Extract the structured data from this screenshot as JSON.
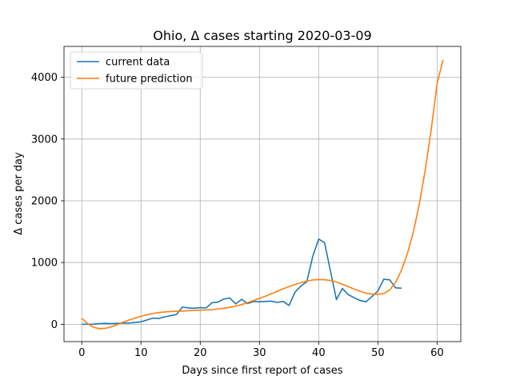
{
  "chart_data": {
    "type": "line",
    "title": "Ohio, Δ cases starting 2020-03-09",
    "xlabel": "Days since first report of cases",
    "ylabel": "Δ cases per day",
    "xlim": [
      -3,
      64
    ],
    "ylim": [
      -280,
      4500
    ],
    "xticks": [
      0,
      10,
      20,
      30,
      40,
      50,
      60
    ],
    "yticks": [
      0,
      1000,
      2000,
      3000,
      4000
    ],
    "grid": true,
    "legend_position": "top-left",
    "series": [
      {
        "name": "current data",
        "color": "#1f77b4",
        "x": [
          0,
          1,
          2,
          3,
          4,
          5,
          6,
          7,
          8,
          9,
          10,
          11,
          12,
          13,
          14,
          15,
          16,
          17,
          18,
          19,
          20,
          21,
          22,
          23,
          24,
          25,
          26,
          27,
          28,
          29,
          30,
          31,
          32,
          33,
          34,
          35,
          36,
          37,
          38,
          39,
          40,
          41,
          42,
          43,
          44,
          45,
          46,
          47,
          48,
          49,
          50,
          51,
          52,
          53,
          54
        ],
        "y": [
          0,
          0,
          3,
          10,
          15,
          10,
          15,
          20,
          20,
          30,
          40,
          70,
          100,
          95,
          120,
          140,
          160,
          280,
          265,
          260,
          270,
          265,
          350,
          360,
          410,
          425,
          330,
          405,
          335,
          370,
          365,
          370,
          375,
          355,
          370,
          305,
          520,
          620,
          690,
          1100,
          1380,
          1320,
          860,
          400,
          580,
          480,
          430,
          385,
          365,
          450,
          540,
          730,
          720,
          590,
          585
        ]
      },
      {
        "name": "future prediction",
        "color": "#ff7f0e",
        "x": [
          0,
          1,
          2,
          3,
          4,
          5,
          6,
          7,
          8,
          9,
          10,
          11,
          12,
          13,
          14,
          15,
          16,
          17,
          18,
          19,
          20,
          21,
          22,
          23,
          24,
          25,
          26,
          27,
          28,
          29,
          30,
          31,
          32,
          33,
          34,
          35,
          36,
          37,
          38,
          39,
          40,
          41,
          42,
          43,
          44,
          45,
          46,
          47,
          48,
          49,
          50,
          51,
          52,
          53,
          54,
          55,
          56,
          57,
          58,
          59,
          60,
          61
        ],
        "y": [
          100,
          10,
          -50,
          -70,
          -65,
          -40,
          -5,
          35,
          70,
          100,
          130,
          155,
          175,
          190,
          200,
          207,
          212,
          215,
          220,
          225,
          228,
          232,
          238,
          248,
          260,
          275,
          295,
          320,
          350,
          385,
          420,
          455,
          495,
          535,
          575,
          610,
          645,
          675,
          700,
          718,
          725,
          722,
          710,
          685,
          650,
          610,
          570,
          535,
          505,
          490,
          485,
          500,
          555,
          680,
          880,
          1150,
          1500,
          1950,
          2500,
          3150,
          3900,
          4280
        ]
      }
    ]
  }
}
